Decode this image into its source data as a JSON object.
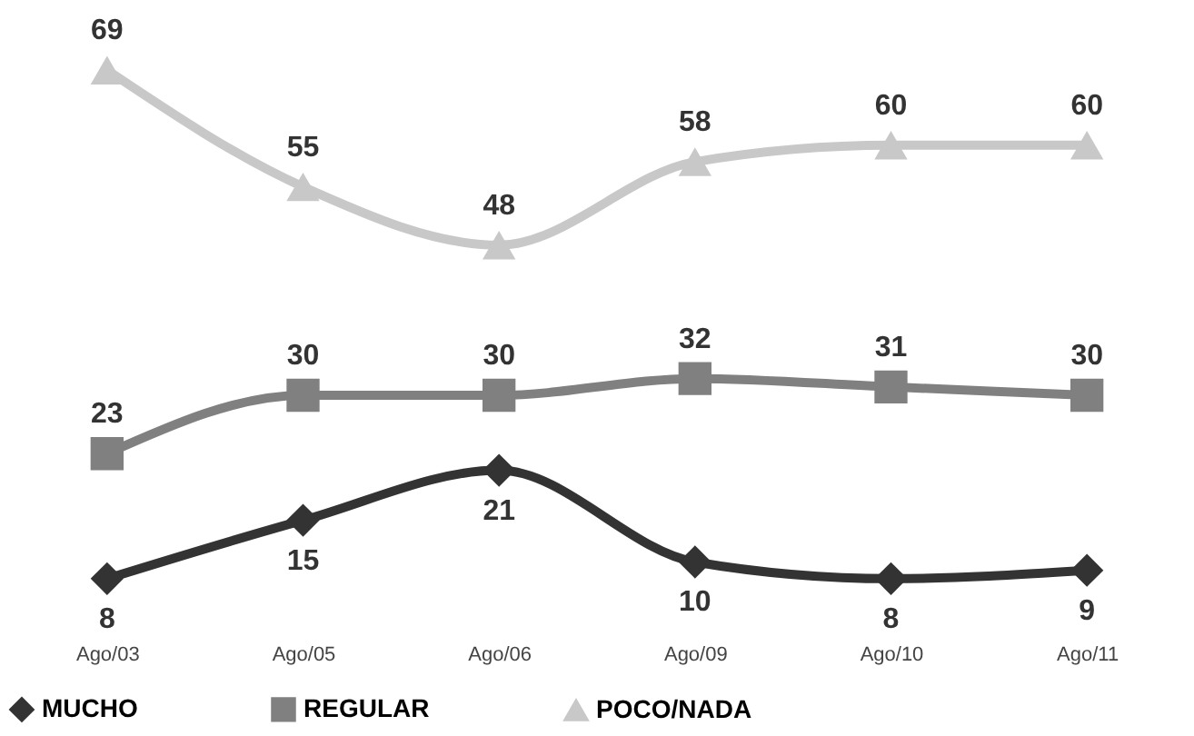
{
  "chart_data": {
    "type": "line",
    "categories": [
      "Ago/03",
      "Ago/05",
      "Ago/06",
      "Ago/09",
      "Ago/10",
      "Ago/11"
    ],
    "series": [
      {
        "name": "MUCHO",
        "color": "#333333",
        "marker": "diamond",
        "values": [
          8,
          15,
          21,
          10,
          8,
          9
        ]
      },
      {
        "name": "REGULAR",
        "color": "#808080",
        "marker": "square",
        "values": [
          23,
          30,
          30,
          32,
          31,
          30
        ]
      },
      {
        "name": "POCO/NADA",
        "color": "#c8c8c8",
        "marker": "triangle",
        "values": [
          69,
          55,
          48,
          58,
          60,
          60
        ]
      }
    ],
    "data_labels": true,
    "legend": "bottom",
    "grid": false,
    "line_style": "solid"
  }
}
